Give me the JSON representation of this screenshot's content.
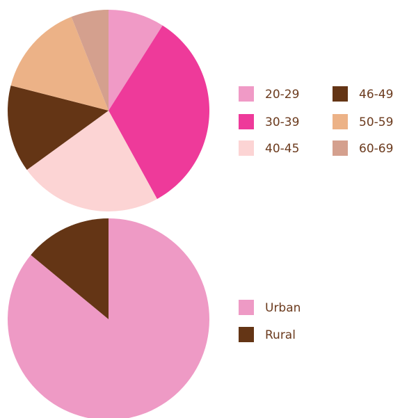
{
  "chart_data": [
    {
      "type": "pie",
      "categories": [
        "20-29",
        "30-39",
        "40-45",
        "46-49",
        "50-59",
        "60-69"
      ],
      "values": [
        9,
        33,
        23,
        14,
        15,
        6
      ],
      "colors": [
        "#f09ac6",
        "#ee3a9a",
        "#fcd4d4",
        "#643515",
        "#ecb287",
        "#d4a08e"
      ]
    },
    {
      "type": "pie",
      "categories": [
        "Urban",
        "Rural"
      ],
      "values": [
        86,
        14
      ],
      "colors": [
        "#ee9ac5",
        "#643515"
      ]
    }
  ]
}
